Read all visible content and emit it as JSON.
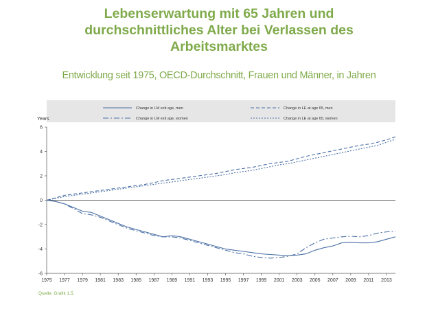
{
  "title_lines": [
    "Lebenserwartung mit 65 Jahren und",
    "durchschnittliches Alter bei Verlassen des",
    "Arbeitsmarktes"
  ],
  "subtitle": "Entwicklung seit 1975, OECD-Durchschnitt, Frauen und Männer, in Jahren",
  "source": "Quelle: Grafik 1.5.",
  "colors": {
    "title": "#7faa4a",
    "series": "#4a6fa5",
    "legend_bg": "#e6e6e6"
  },
  "chart_data": {
    "type": "line",
    "ylabel": "Years",
    "ylim": [
      -6,
      6
    ],
    "xlim": [
      1975,
      2014
    ],
    "yticks": [
      6,
      4,
      2,
      0,
      -2,
      -4,
      -6
    ],
    "xticks": [
      1975,
      1977,
      1979,
      1981,
      1983,
      1985,
      1987,
      1989,
      1991,
      1993,
      1995,
      1997,
      1999,
      2001,
      2003,
      2005,
      2007,
      2009,
      2011,
      2013
    ],
    "legend_position": "top",
    "series": [
      {
        "name": "Change in LM exit age, men",
        "dash": "solid",
        "points": [
          [
            1975,
            0
          ],
          [
            1976,
            -0.1
          ],
          [
            1977,
            -0.3
          ],
          [
            1978,
            -0.6
          ],
          [
            1979,
            -0.9
          ],
          [
            1980,
            -1.0
          ],
          [
            1981,
            -1.3
          ],
          [
            1982,
            -1.6
          ],
          [
            1983,
            -1.9
          ],
          [
            1984,
            -2.2
          ],
          [
            1985,
            -2.4
          ],
          [
            1986,
            -2.6
          ],
          [
            1987,
            -2.8
          ],
          [
            1988,
            -3.0
          ],
          [
            1989,
            -2.9
          ],
          [
            1990,
            -3.0
          ],
          [
            1991,
            -3.2
          ],
          [
            1992,
            -3.4
          ],
          [
            1993,
            -3.6
          ],
          [
            1994,
            -3.8
          ],
          [
            1995,
            -4.0
          ],
          [
            1996,
            -4.1
          ],
          [
            1997,
            -4.2
          ],
          [
            1998,
            -4.3
          ],
          [
            1999,
            -4.4
          ],
          [
            2000,
            -4.45
          ],
          [
            2001,
            -4.5
          ],
          [
            2002,
            -4.55
          ],
          [
            2003,
            -4.5
          ],
          [
            2004,
            -4.4
          ],
          [
            2005,
            -4.1
          ],
          [
            2006,
            -3.9
          ],
          [
            2007,
            -3.75
          ],
          [
            2008,
            -3.5
          ],
          [
            2009,
            -3.45
          ],
          [
            2010,
            -3.5
          ],
          [
            2011,
            -3.5
          ],
          [
            2012,
            -3.4
          ],
          [
            2013,
            -3.2
          ],
          [
            2014,
            -3.0
          ]
        ]
      },
      {
        "name": "Change in LE at age 65, men",
        "dash": "dashed",
        "points": [
          [
            1975,
            0
          ],
          [
            1976,
            0.2
          ],
          [
            1977,
            0.4
          ],
          [
            1978,
            0.5
          ],
          [
            1979,
            0.6
          ],
          [
            1980,
            0.7
          ],
          [
            1981,
            0.8
          ],
          [
            1982,
            0.9
          ],
          [
            1983,
            1.0
          ],
          [
            1984,
            1.1
          ],
          [
            1985,
            1.2
          ],
          [
            1986,
            1.3
          ],
          [
            1987,
            1.45
          ],
          [
            1988,
            1.6
          ],
          [
            1989,
            1.7
          ],
          [
            1990,
            1.8
          ],
          [
            1991,
            1.9
          ],
          [
            1992,
            2.0
          ],
          [
            1993,
            2.1
          ],
          [
            1994,
            2.2
          ],
          [
            1995,
            2.35
          ],
          [
            1996,
            2.5
          ],
          [
            1997,
            2.6
          ],
          [
            1998,
            2.7
          ],
          [
            1999,
            2.85
          ],
          [
            2000,
            3.0
          ],
          [
            2001,
            3.1
          ],
          [
            2002,
            3.2
          ],
          [
            2003,
            3.4
          ],
          [
            2004,
            3.6
          ],
          [
            2005,
            3.75
          ],
          [
            2006,
            3.9
          ],
          [
            2007,
            4.05
          ],
          [
            2008,
            4.2
          ],
          [
            2009,
            4.35
          ],
          [
            2010,
            4.5
          ],
          [
            2011,
            4.6
          ],
          [
            2012,
            4.75
          ],
          [
            2013,
            4.95
          ],
          [
            2014,
            5.2
          ]
        ]
      },
      {
        "name": "Change in LM exit age, women",
        "dash": "dashdot",
        "points": [
          [
            1975,
            0
          ],
          [
            1976,
            -0.1
          ],
          [
            1977,
            -0.3
          ],
          [
            1978,
            -0.7
          ],
          [
            1979,
            -1.1
          ],
          [
            1980,
            -1.2
          ],
          [
            1981,
            -1.4
          ],
          [
            1982,
            -1.7
          ],
          [
            1983,
            -2.0
          ],
          [
            1984,
            -2.3
          ],
          [
            1985,
            -2.5
          ],
          [
            1986,
            -2.7
          ],
          [
            1987,
            -2.9
          ],
          [
            1988,
            -3.0
          ],
          [
            1989,
            -3.0
          ],
          [
            1990,
            -3.1
          ],
          [
            1991,
            -3.3
          ],
          [
            1992,
            -3.5
          ],
          [
            1993,
            -3.7
          ],
          [
            1994,
            -3.9
          ],
          [
            1995,
            -4.1
          ],
          [
            1996,
            -4.3
          ],
          [
            1997,
            -4.4
          ],
          [
            1998,
            -4.6
          ],
          [
            1999,
            -4.7
          ],
          [
            2000,
            -4.75
          ],
          [
            2001,
            -4.7
          ],
          [
            2002,
            -4.6
          ],
          [
            2003,
            -4.4
          ],
          [
            2004,
            -3.9
          ],
          [
            2005,
            -3.5
          ],
          [
            2006,
            -3.2
          ],
          [
            2007,
            -3.1
          ],
          [
            2008,
            -3.0
          ],
          [
            2009,
            -2.95
          ],
          [
            2010,
            -3.0
          ],
          [
            2011,
            -2.9
          ],
          [
            2012,
            -2.7
          ],
          [
            2013,
            -2.6
          ],
          [
            2014,
            -2.55
          ]
        ]
      },
      {
        "name": "Change in LE at age 65, women",
        "dash": "dotted",
        "points": [
          [
            1975,
            0
          ],
          [
            1976,
            0.15
          ],
          [
            1977,
            0.3
          ],
          [
            1978,
            0.4
          ],
          [
            1979,
            0.5
          ],
          [
            1980,
            0.6
          ],
          [
            1981,
            0.7
          ],
          [
            1982,
            0.8
          ],
          [
            1983,
            0.9
          ],
          [
            1984,
            1.0
          ],
          [
            1985,
            1.1
          ],
          [
            1986,
            1.2
          ],
          [
            1987,
            1.3
          ],
          [
            1988,
            1.4
          ],
          [
            1989,
            1.5
          ],
          [
            1990,
            1.6
          ],
          [
            1991,
            1.7
          ],
          [
            1992,
            1.8
          ],
          [
            1993,
            1.9
          ],
          [
            1994,
            2.0
          ],
          [
            1995,
            2.1
          ],
          [
            1996,
            2.25
          ],
          [
            1997,
            2.35
          ],
          [
            1998,
            2.45
          ],
          [
            1999,
            2.6
          ],
          [
            2000,
            2.75
          ],
          [
            2001,
            2.9
          ],
          [
            2002,
            3.0
          ],
          [
            2003,
            3.15
          ],
          [
            2004,
            3.3
          ],
          [
            2005,
            3.45
          ],
          [
            2006,
            3.6
          ],
          [
            2007,
            3.75
          ],
          [
            2008,
            3.9
          ],
          [
            2009,
            4.05
          ],
          [
            2010,
            4.2
          ],
          [
            2011,
            4.35
          ],
          [
            2012,
            4.5
          ],
          [
            2013,
            4.75
          ],
          [
            2014,
            5.0
          ]
        ]
      }
    ]
  }
}
